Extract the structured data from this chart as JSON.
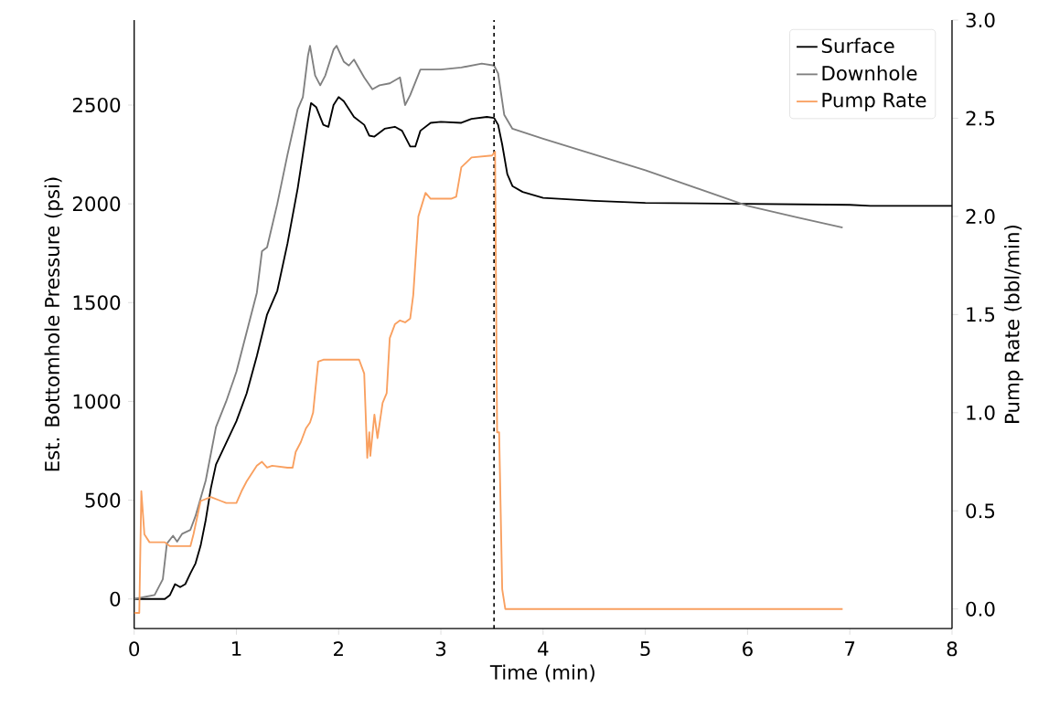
{
  "chart_data": {
    "type": "line",
    "xlabel": "Time (min)",
    "ylabel": "Est. Bottomhole Pressure (psi)",
    "y2label": "Pump Rate (bbl/min)",
    "xlim": [
      0,
      8
    ],
    "xticks": [
      0,
      1,
      2,
      3,
      4,
      5,
      6,
      7,
      8
    ],
    "ylim": [
      -150,
      2930
    ],
    "yticks": [
      0,
      500,
      1000,
      1500,
      2000,
      2500
    ],
    "y2lim": [
      -0.1,
      3.0
    ],
    "y2ticks": [
      {
        "value": 0,
        "label": "0.0"
      },
      {
        "value": 0.5,
        "label": "0.5"
      },
      {
        "value": 1,
        "label": "1.0"
      },
      {
        "value": 1.5,
        "label": "1.5"
      },
      {
        "value": 2,
        "label": "2.0"
      },
      {
        "value": 2.5,
        "label": "2.5"
      },
      {
        "value": 3,
        "label": "3.0"
      }
    ],
    "legend": "top right",
    "ref_lines": [
      {
        "axis": "x",
        "value": 3.52,
        "color": "#000000",
        "line_style": "dashed"
      }
    ],
    "series": [
      {
        "name": "Surface",
        "color": "#000000",
        "x": [
          0,
          0.3,
          0.35,
          0.4,
          0.45,
          0.5,
          0.55,
          0.6,
          0.65,
          0.7,
          0.75,
          0.8,
          0.9,
          1.0,
          1.1,
          1.2,
          1.3,
          1.4,
          1.5,
          1.6,
          1.7,
          1.73,
          1.78,
          1.85,
          1.9,
          1.95,
          2.0,
          2.05,
          2.15,
          2.25,
          2.3,
          2.35,
          2.45,
          2.55,
          2.62,
          2.7,
          2.75,
          2.8,
          2.9,
          3.0,
          3.2,
          3.3,
          3.45,
          3.52,
          3.56,
          3.6,
          3.65,
          3.7,
          3.8,
          4.0,
          4.5,
          5.0,
          6.0,
          7.0,
          7.2,
          8.0
        ],
        "values": [
          0,
          0,
          20,
          75,
          60,
          75,
          130,
          180,
          270,
          400,
          560,
          680,
          790,
          900,
          1040,
          1230,
          1440,
          1560,
          1800,
          2080,
          2420,
          2510,
          2490,
          2400,
          2390,
          2500,
          2540,
          2520,
          2440,
          2400,
          2345,
          2340,
          2380,
          2390,
          2370,
          2290,
          2290,
          2370,
          2410,
          2415,
          2410,
          2430,
          2440,
          2435,
          2400,
          2300,
          2150,
          2090,
          2060,
          2030,
          2015,
          2005,
          2000,
          1995,
          1990,
          1990
        ]
      },
      {
        "name": "Downhole",
        "color": "#808080",
        "x": [
          0,
          0.2,
          0.28,
          0.32,
          0.38,
          0.42,
          0.47,
          0.55,
          0.6,
          0.7,
          0.8,
          0.9,
          1.0,
          1.1,
          1.2,
          1.25,
          1.3,
          1.4,
          1.5,
          1.6,
          1.65,
          1.7,
          1.72,
          1.77,
          1.82,
          1.87,
          1.95,
          1.98,
          2.05,
          2.1,
          2.15,
          2.25,
          2.33,
          2.4,
          2.5,
          2.6,
          2.65,
          2.7,
          2.8,
          3.0,
          3.2,
          3.4,
          3.52,
          3.56,
          3.62,
          3.7,
          4.0,
          4.5,
          5.0,
          5.5,
          6.0,
          6.5,
          6.93
        ],
        "values": [
          0,
          20,
          100,
          280,
          320,
          290,
          330,
          350,
          420,
          600,
          870,
          1000,
          1150,
          1350,
          1550,
          1760,
          1780,
          2000,
          2250,
          2480,
          2540,
          2750,
          2800,
          2650,
          2600,
          2650,
          2780,
          2800,
          2720,
          2700,
          2730,
          2640,
          2580,
          2600,
          2610,
          2640,
          2500,
          2550,
          2680,
          2680,
          2690,
          2710,
          2700,
          2660,
          2450,
          2380,
          2330,
          2250,
          2170,
          2080,
          1990,
          1930,
          1880
        ]
      },
      {
        "name": "Pump Rate",
        "color": "#f9a060",
        "axis": "y2",
        "x": [
          0,
          0.05,
          0.07,
          0.1,
          0.15,
          0.3,
          0.35,
          0.55,
          0.58,
          0.65,
          0.75,
          0.85,
          0.9,
          1.0,
          1.05,
          1.1,
          1.2,
          1.25,
          1.3,
          1.35,
          1.5,
          1.55,
          1.58,
          1.63,
          1.68,
          1.72,
          1.75,
          1.8,
          1.85,
          2.2,
          2.25,
          2.28,
          2.3,
          2.31,
          2.35,
          2.38,
          2.43,
          2.47,
          2.5,
          2.55,
          2.6,
          2.65,
          2.7,
          2.73,
          2.78,
          2.85,
          2.9,
          3.1,
          3.15,
          3.2,
          3.3,
          3.5,
          3.53,
          3.55,
          3.57,
          3.6,
          3.63,
          5,
          6.93
        ],
        "values": [
          -0.02,
          -0.02,
          0.6,
          0.38,
          0.34,
          0.34,
          0.32,
          0.32,
          0.38,
          0.55,
          0.57,
          0.55,
          0.54,
          0.54,
          0.6,
          0.65,
          0.73,
          0.75,
          0.72,
          0.73,
          0.72,
          0.72,
          0.8,
          0.85,
          0.92,
          0.95,
          1.0,
          1.26,
          1.27,
          1.27,
          1.2,
          0.77,
          0.9,
          0.78,
          0.99,
          0.87,
          1.05,
          1.1,
          1.38,
          1.45,
          1.47,
          1.46,
          1.48,
          1.6,
          2.0,
          2.12,
          2.09,
          2.09,
          2.1,
          2.25,
          2.3,
          2.31,
          2.33,
          0.9,
          0.9,
          0.1,
          0.0,
          0.0,
          0.0
        ]
      }
    ]
  }
}
